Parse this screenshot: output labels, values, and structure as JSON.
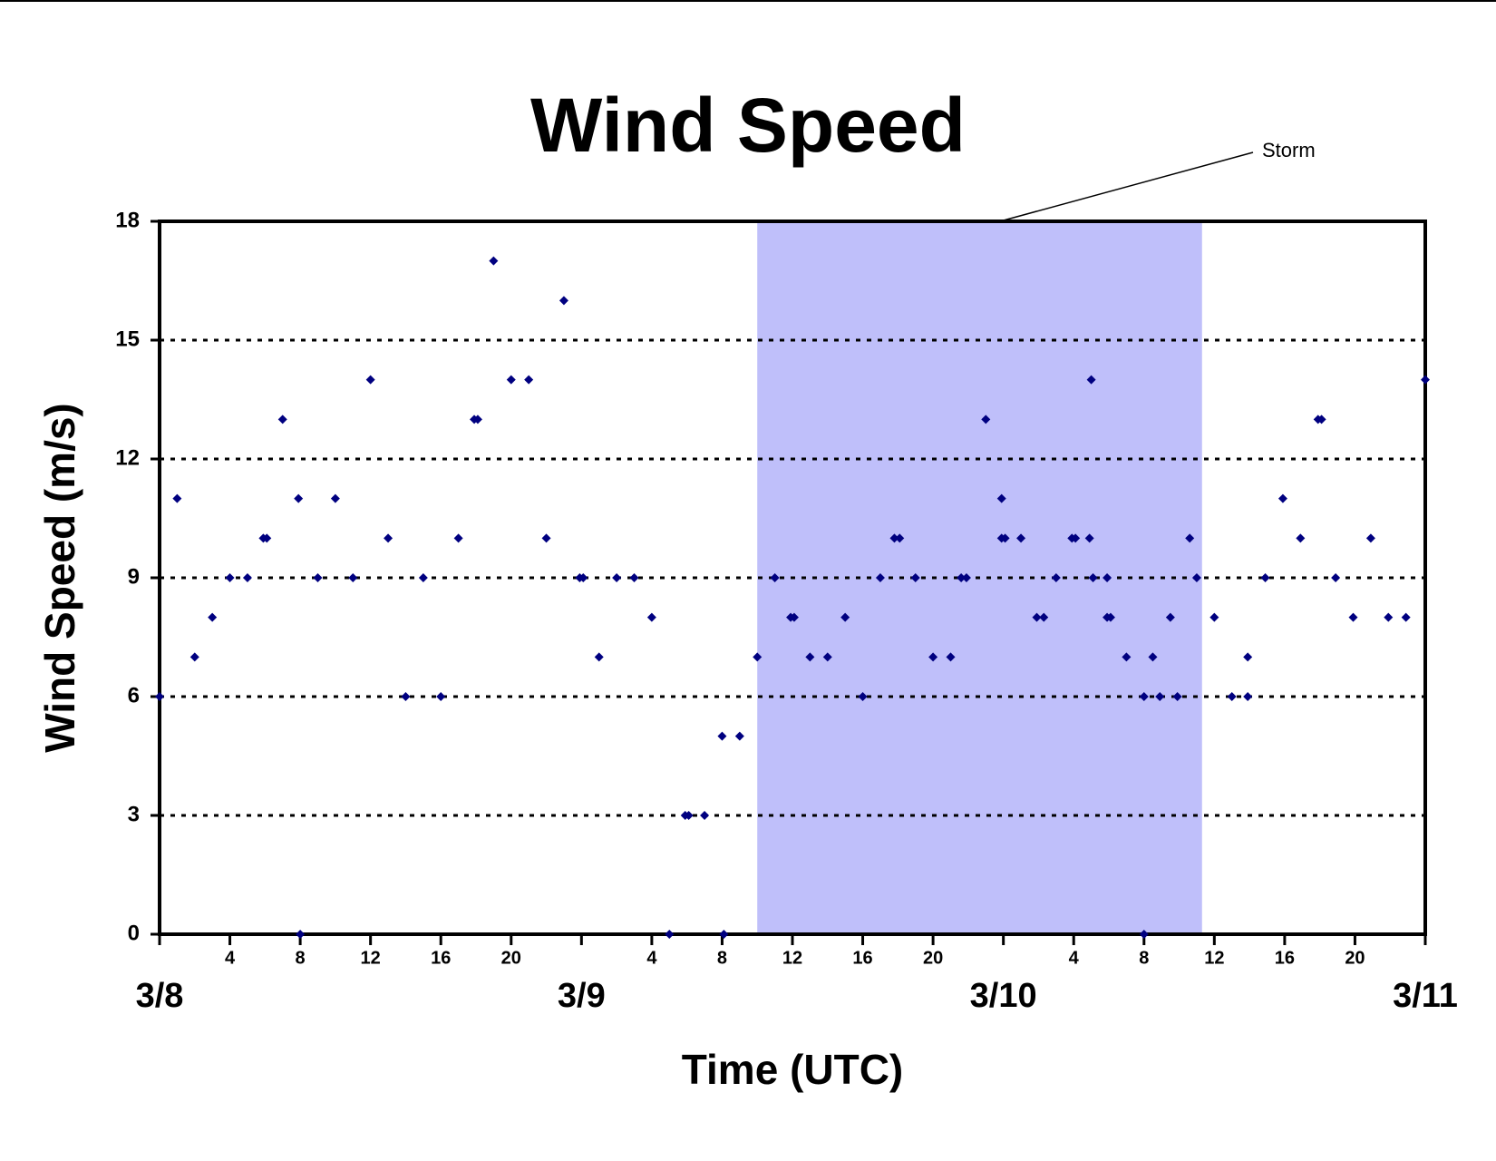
{
  "chart_data": {
    "type": "scatter",
    "title": "Wind Speed",
    "x_label": "Time (UTC)",
    "y_label": "Wind Speed (m/s)",
    "color": "#000080",
    "grid": true,
    "xlim": [
      0,
      72
    ],
    "ylim": [
      0,
      18
    ],
    "yticks": [
      0,
      3,
      6,
      9,
      12,
      15,
      18
    ],
    "xticks": [
      {
        "value": 0,
        "label": "3/8"
      },
      4,
      8,
      12,
      16,
      20,
      {
        "value": 24,
        "label": "3/9"
      },
      {
        "value": 28,
        "label": "4"
      },
      {
        "value": 32,
        "label": "8"
      },
      {
        "value": 36,
        "label": "12"
      },
      {
        "value": 40,
        "label": "16"
      },
      {
        "value": 44,
        "label": "20"
      },
      {
        "value": 48,
        "label": "3/10"
      },
      {
        "value": 52,
        "label": "4"
      },
      {
        "value": 56,
        "label": "8"
      },
      {
        "value": 60,
        "label": "12"
      },
      {
        "value": 64,
        "label": "16"
      },
      {
        "value": 68,
        "label": "20"
      },
      {
        "value": 72,
        "label": "3/11"
      }
    ],
    "shaded_region": {
      "x": [
        34,
        59.3
      ],
      "color": "#bfbffa",
      "label": "Storm"
    },
    "x": [
      0,
      1,
      2,
      3,
      4,
      5,
      5.9,
      6.1,
      7,
      7.9,
      8,
      9,
      10,
      11,
      12,
      13,
      14,
      15,
      16,
      17,
      17.9,
      18.1,
      19,
      20,
      21,
      22,
      23,
      23.9,
      24.1,
      25,
      26,
      27,
      28,
      29,
      29.9,
      30.1,
      31,
      32,
      32.1,
      33,
      34,
      35,
      35.9,
      36.1,
      37,
      38,
      39,
      40,
      41,
      41.8,
      42.1,
      43,
      44,
      45,
      45.6,
      45.9,
      47,
      47.9,
      47.9,
      48.1,
      49,
      49.9,
      50.3,
      51,
      51.9,
      52.1,
      52.9,
      53,
      53.1,
      53.9,
      53.9,
      54.1,
      55,
      56,
      56,
      56.5,
      56.9,
      57.5,
      57.9,
      58.6,
      59,
      60,
      61,
      61.9,
      61.9,
      62.9,
      63.9,
      64.9,
      65.9,
      66.1,
      66.9,
      67.9,
      68.9,
      69.9,
      70.9,
      72
    ],
    "values": [
      6,
      11,
      7,
      8,
      9,
      9,
      10,
      10,
      13,
      11,
      0,
      9,
      11,
      9,
      14,
      10,
      6,
      9,
      6,
      10,
      13,
      13,
      17,
      14,
      14,
      10,
      16,
      9,
      9,
      7,
      9,
      9,
      8,
      0,
      3,
      3,
      3,
      5,
      0,
      5,
      7,
      9,
      8,
      8,
      7,
      7,
      8,
      6,
      9,
      10,
      10,
      9,
      7,
      7,
      9,
      9,
      13,
      11,
      10,
      10,
      10,
      8,
      8,
      9,
      10,
      10,
      10,
      14,
      9,
      9,
      8,
      8,
      7,
      0,
      6,
      7,
      6,
      8,
      6,
      10,
      9,
      8,
      6,
      7,
      6,
      9,
      11,
      10,
      13,
      13,
      9,
      8,
      10,
      8,
      8,
      14
    ]
  }
}
